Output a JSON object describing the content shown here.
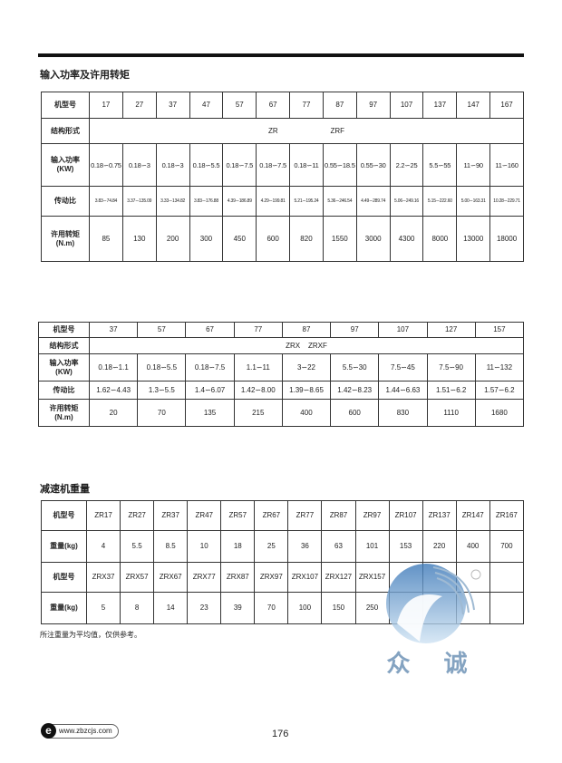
{
  "section1": {
    "title": "输入功率及许用转矩",
    "rows": [
      {
        "label": "机型号",
        "cells": [
          "17",
          "27",
          "37",
          "47",
          "57",
          "67",
          "77",
          "87",
          "97",
          "107",
          "137",
          "147",
          "167"
        ]
      },
      {
        "label": "结构形式",
        "merged": "ZR                          ZRF"
      },
      {
        "label": "输入功率\n(KW)",
        "cells": [
          "0.18∽0.75",
          "0.18∽3",
          "0.18∽3",
          "0.18∽5.5",
          "0.18∽7.5",
          "0.18∽7.5",
          "0.18∽11",
          "0.55∽18.5",
          "0.55∽30",
          "2.2∽25",
          "5.5∽55",
          "11∽90",
          "11∽160"
        ]
      },
      {
        "label": "传动比",
        "cells": [
          "3.83∽74.84",
          "3.37∽135.09",
          "3.33∽134.82",
          "3.83∽176.88",
          "4.39∽186.89",
          "4.29∽199.81",
          "5.21∽195.24",
          "5.36∽246.54",
          "4.49∽289.74",
          "5.06∽249.16",
          "5.15∽222.60",
          "5.00∽163.31",
          "10.28∽229.71"
        ]
      },
      {
        "label": "许用转矩\n(N.m)",
        "cells": [
          "85",
          "130",
          "200",
          "300",
          "450",
          "600",
          "820",
          "1550",
          "3000",
          "4300",
          "8000",
          "13000",
          "18000"
        ]
      }
    ]
  },
  "section2": {
    "rows": [
      {
        "label": "机型号",
        "cells": [
          "37",
          "57",
          "67",
          "77",
          "87",
          "97",
          "107",
          "127",
          "157"
        ]
      },
      {
        "label": "结构形式",
        "merged": "ZRX    ZRXF"
      },
      {
        "label": "输入功率\n(KW)",
        "cells": [
          "0.18∽1.1",
          "0.18∽5.5",
          "0.18∽7.5",
          "1.1∽11",
          "3∽22",
          "5.5∽30",
          "7.5∽45",
          "7.5∽90",
          "11∽132"
        ]
      },
      {
        "label": "传动比",
        "cells": [
          "1.62∽4.43",
          "1.3∽5.5",
          "1.4∽6.07",
          "1.42∽8.00",
          "1.39∽8.65",
          "1.42∽8.23",
          "1.44∽6.63",
          "1.51∽6.2",
          "1.57∽6.2"
        ]
      },
      {
        "label": "许用转矩\n(N.m)",
        "cells": [
          "20",
          "70",
          "135",
          "215",
          "400",
          "600",
          "830",
          "1110",
          "1680"
        ]
      }
    ]
  },
  "section3": {
    "title": "减速机重量",
    "rows": [
      {
        "label": "机型号",
        "cells": [
          "ZR17",
          "ZR27",
          "ZR37",
          "ZR47",
          "ZR57",
          "ZR67",
          "ZR77",
          "ZR87",
          "ZR97",
          "ZR107",
          "ZR137",
          "ZR147",
          "ZR167"
        ]
      },
      {
        "label": "重量(kg)",
        "cells": [
          "4",
          "5.5",
          "8.5",
          "10",
          "18",
          "25",
          "36",
          "63",
          "101",
          "153",
          "220",
          "400",
          "700"
        ]
      },
      {
        "label": "机型号",
        "cells": [
          "ZRX37",
          "ZRX57",
          "ZRX67",
          "ZRX77",
          "ZRX87",
          "ZRX97",
          "ZRX107",
          "ZRX127",
          "ZRX157",
          "",
          "",
          "",
          ""
        ]
      },
      {
        "label": "重量(kg)",
        "cells": [
          "5",
          "8",
          "14",
          "23",
          "39",
          "70",
          "100",
          "150",
          "250",
          "",
          "",
          "",
          ""
        ]
      }
    ],
    "note": "所注重量为平均值，仅供参考。"
  },
  "logo": {
    "text": "众诚",
    "color": "#6f93b7"
  },
  "footer": {
    "website": "www.zbzcjs.com",
    "page_number": "176"
  }
}
